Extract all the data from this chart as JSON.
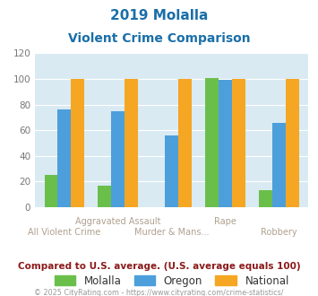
{
  "title_line1": "2019 Molalla",
  "title_line2": "Violent Crime Comparison",
  "categories_top": [
    "",
    "Aggravated Assault",
    "",
    "Rape",
    ""
  ],
  "categories_bottom": [
    "All Violent Crime",
    "",
    "Murder & Mans...",
    "",
    "Robbery"
  ],
  "molalla": [
    25,
    17,
    0,
    101,
    13
  ],
  "oregon": [
    76,
    75,
    56,
    99,
    66
  ],
  "national": [
    100,
    100,
    100,
    100,
    100
  ],
  "molalla_color": "#6abf4b",
  "oregon_color": "#4d9fdb",
  "national_color": "#f5a623",
  "ylim": [
    0,
    120
  ],
  "yticks": [
    0,
    20,
    40,
    60,
    80,
    100,
    120
  ],
  "bg_color": "#d9eaf3",
  "caption": "Compared to U.S. average. (U.S. average equals 100)",
  "footer": "© 2025 CityRating.com - https://www.cityrating.com/crime-statistics/",
  "title_color": "#1a6fa8",
  "caption_color": "#8b1a1a",
  "footer_color": "#999999",
  "label_color": "#b0a090"
}
